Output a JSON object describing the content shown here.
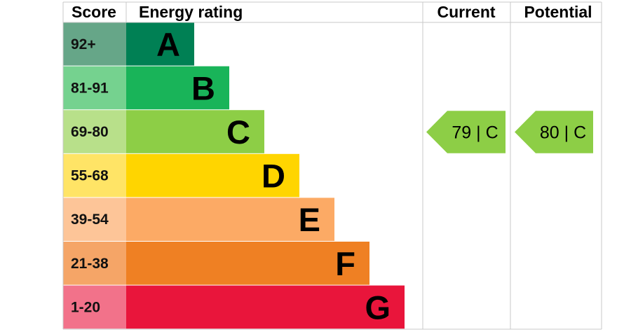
{
  "headers": {
    "score": "Score",
    "energy_rating": "Energy rating",
    "current": "Current",
    "potential": "Potential"
  },
  "chart_data": {
    "type": "bar",
    "categories": [
      "A",
      "B",
      "C",
      "D",
      "E",
      "F",
      "G"
    ],
    "score_ranges": [
      "92+",
      "81-91",
      "69-80",
      "55-68",
      "39-54",
      "21-38",
      "1-20"
    ],
    "bar_colors": [
      "#008054",
      "#19b459",
      "#8dce46",
      "#ffd500",
      "#fcaa65",
      "#ef8023",
      "#e9153b"
    ],
    "score_cell_colors": [
      "#66a688",
      "#75d28f",
      "#b8e08a",
      "#ffe466",
      "#fdc598",
      "#f5a567",
      "#f2728a"
    ],
    "current": {
      "value": 79,
      "band": "C",
      "label": "79 |  C",
      "color": "#8dce46"
    },
    "potential": {
      "value": 80,
      "band": "C",
      "label": "80 |  C",
      "color": "#8dce46"
    }
  }
}
